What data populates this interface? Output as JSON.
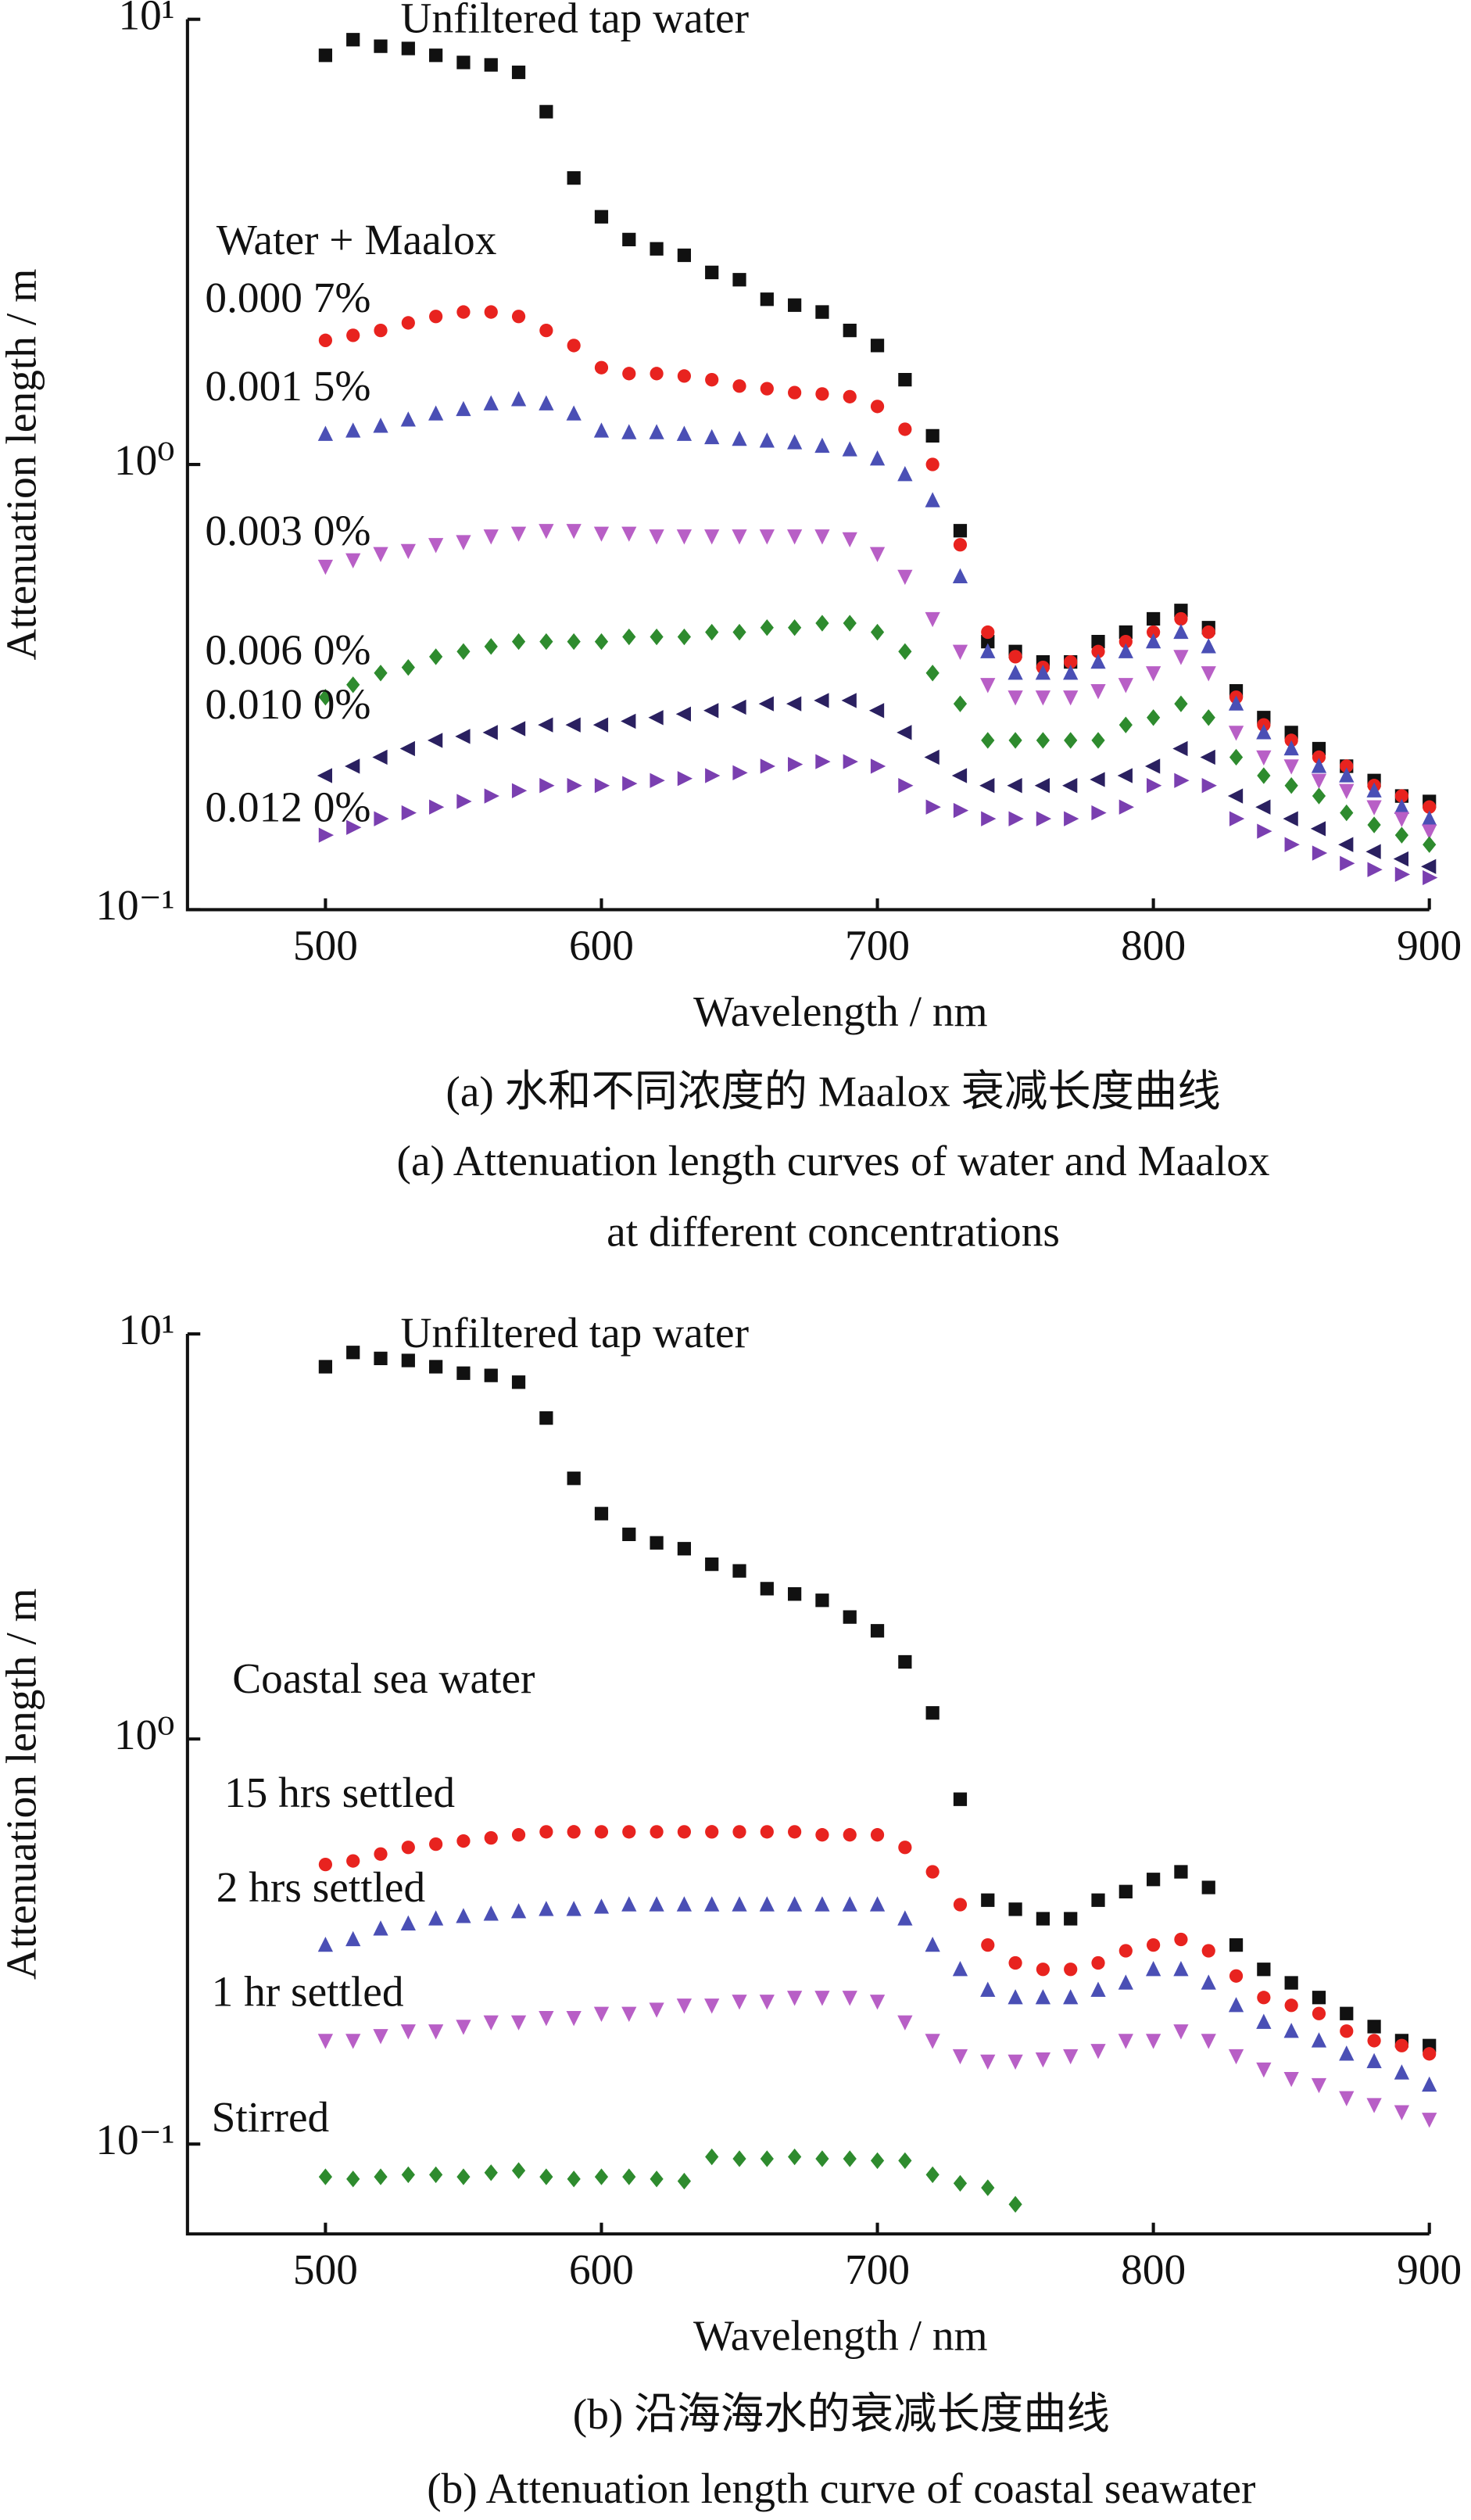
{
  "chart_data": [
    {
      "type": "scatter",
      "x": [
        500,
        510,
        520,
        530,
        540,
        550,
        560,
        570,
        580,
        590,
        600,
        610,
        620,
        630,
        640,
        650,
        660,
        670,
        680,
        690,
        700,
        710,
        720,
        730,
        740,
        750,
        760,
        770,
        780,
        790,
        800,
        810,
        820,
        830,
        840,
        850,
        860,
        870,
        880,
        890,
        900
      ],
      "xlabel": "Wavelength / nm",
      "ylabel": "Attenuation length / m",
      "xlim": [
        450,
        900
      ],
      "xticks": [
        500,
        600,
        700,
        800,
        900
      ],
      "ylim": [
        0.1,
        10
      ],
      "log_y": true,
      "yticks": [
        {
          "value": 10,
          "label": "10¹"
        },
        {
          "value": 1,
          "label": "10⁰"
        },
        {
          "value": 0.1,
          "label": "10⁻¹"
        }
      ],
      "annotations": [
        "Water + Maalox"
      ],
      "caption": [
        "(a) 水和不同浓度的 Maalox 衰减长度曲线",
        "(a) Attenuation length curves of water and Maalox",
        "at different concentrations"
      ],
      "series": [
        {
          "name": "Unfiltered tap water",
          "color": "#111111",
          "marker": "square",
          "values": [
            8.3,
            9,
            8.7,
            8.6,
            8.3,
            8,
            7.9,
            7.6,
            6.2,
            4.4,
            3.6,
            3.2,
            3.05,
            2.95,
            2.7,
            2.6,
            2.35,
            2.28,
            2.2,
            2.0,
            1.85,
            1.55,
            1.16,
            0.71,
            0.4,
            0.38,
            0.36,
            0.36,
            0.4,
            0.42,
            0.45,
            0.47,
            0.43,
            0.31,
            0.27,
            0.25,
            0.23,
            0.21,
            0.195,
            0.18,
            0.175
          ]
        },
        {
          "name": "0.000 7%",
          "color": "#e8231f",
          "marker": "circle",
          "values": [
            1.9,
            1.95,
            2.0,
            2.08,
            2.15,
            2.2,
            2.2,
            2.15,
            2.0,
            1.85,
            1.65,
            1.6,
            1.6,
            1.58,
            1.55,
            1.5,
            1.48,
            1.45,
            1.44,
            1.42,
            1.35,
            1.2,
            1.0,
            0.66,
            0.42,
            0.37,
            0.35,
            0.36,
            0.38,
            0.4,
            0.42,
            0.45,
            0.42,
            0.3,
            0.26,
            0.24,
            0.22,
            0.21,
            0.19,
            0.18,
            0.17
          ]
        },
        {
          "name": "0.001 5%",
          "color": "#4a4fb5",
          "marker": "triangle-up",
          "values": [
            1.17,
            1.19,
            1.22,
            1.26,
            1.3,
            1.33,
            1.37,
            1.4,
            1.37,
            1.3,
            1.19,
            1.18,
            1.18,
            1.17,
            1.15,
            1.14,
            1.13,
            1.12,
            1.1,
            1.08,
            1.03,
            0.95,
            0.83,
            0.56,
            0.38,
            0.34,
            0.34,
            0.34,
            0.36,
            0.38,
            0.4,
            0.42,
            0.39,
            0.29,
            0.25,
            0.23,
            0.21,
            0.2,
            0.185,
            0.17,
            0.16
          ]
        },
        {
          "name": "0.003 0%",
          "color": "#b85fc6",
          "marker": "triangle-down",
          "values": [
            0.59,
            0.61,
            0.63,
            0.64,
            0.66,
            0.67,
            0.69,
            0.7,
            0.71,
            0.71,
            0.7,
            0.7,
            0.69,
            0.69,
            0.69,
            0.69,
            0.69,
            0.69,
            0.69,
            0.68,
            0.63,
            0.56,
            0.45,
            0.38,
            0.32,
            0.3,
            0.3,
            0.3,
            0.31,
            0.32,
            0.34,
            0.37,
            0.34,
            0.25,
            0.22,
            0.21,
            0.195,
            0.185,
            0.17,
            0.16,
            0.15
          ]
        },
        {
          "name": "0.006 0%",
          "color": "#2e8b2e",
          "marker": "diamond",
          "values": [
            0.3,
            0.32,
            0.34,
            0.35,
            0.37,
            0.38,
            0.39,
            0.4,
            0.4,
            0.4,
            0.4,
            0.41,
            0.41,
            0.41,
            0.42,
            0.42,
            0.43,
            0.43,
            0.44,
            0.44,
            0.42,
            0.38,
            0.34,
            0.29,
            0.24,
            0.24,
            0.24,
            0.24,
            0.24,
            0.26,
            0.27,
            0.29,
            0.27,
            0.22,
            0.2,
            0.19,
            0.18,
            0.165,
            0.155,
            0.147,
            0.14
          ]
        },
        {
          "name": "0.010 0%",
          "color": "#2a2060",
          "marker": "triangle-left",
          "values": [
            0.2,
            0.21,
            0.22,
            0.23,
            0.24,
            0.245,
            0.25,
            0.255,
            0.26,
            0.26,
            0.26,
            0.265,
            0.27,
            0.275,
            0.28,
            0.285,
            0.29,
            0.29,
            0.295,
            0.295,
            0.28,
            0.25,
            0.22,
            0.2,
            0.19,
            0.19,
            0.19,
            0.19,
            0.196,
            0.2,
            0.21,
            0.23,
            0.22,
            0.18,
            0.17,
            0.16,
            0.152,
            0.14,
            0.135,
            0.13,
            0.125
          ]
        },
        {
          "name": "0.012 0%",
          "color": "#7a3fb0",
          "marker": "triangle-right",
          "values": [
            0.147,
            0.153,
            0.16,
            0.165,
            0.17,
            0.175,
            0.18,
            0.185,
            0.19,
            0.19,
            0.19,
            0.192,
            0.195,
            0.197,
            0.2,
            0.203,
            0.21,
            0.212,
            0.215,
            0.215,
            0.21,
            0.19,
            0.17,
            0.167,
            0.16,
            0.16,
            0.16,
            0.16,
            0.165,
            0.17,
            0.19,
            0.195,
            0.19,
            0.16,
            0.15,
            0.14,
            0.134,
            0.127,
            0.123,
            0.12,
            0.118
          ]
        }
      ]
    },
    {
      "type": "scatter",
      "x": [
        500,
        510,
        520,
        530,
        540,
        550,
        560,
        570,
        580,
        590,
        600,
        610,
        620,
        630,
        640,
        650,
        660,
        670,
        680,
        690,
        700,
        710,
        720,
        730,
        740,
        750,
        760,
        770,
        780,
        790,
        800,
        810,
        820,
        830,
        840,
        850,
        860,
        870,
        880,
        890,
        900
      ],
      "xlabel": "Wavelength / nm",
      "ylabel": "Attenuation length / m",
      "xlim": [
        450,
        900
      ],
      "xticks": [
        500,
        600,
        700,
        800,
        900
      ],
      "ylim": [
        0.06,
        10
      ],
      "log_y": true,
      "yticks": [
        {
          "value": 10,
          "label": "10¹"
        },
        {
          "value": 1,
          "label": "10⁰"
        },
        {
          "value": 0.1,
          "label": "10⁻¹"
        }
      ],
      "annotations": [
        "Coastal sea water"
      ],
      "caption": [
        "(b) 沿海海水的衰减长度曲线",
        "(b) Attenuation length curve of coastal seawater"
      ],
      "series": [
        {
          "name": "Unfiltered tap water",
          "color": "#111111",
          "marker": "square",
          "values": [
            8.3,
            9,
            8.7,
            8.6,
            8.3,
            8,
            7.9,
            7.6,
            6.2,
            4.4,
            3.6,
            3.2,
            3.05,
            2.95,
            2.7,
            2.6,
            2.35,
            2.28,
            2.2,
            2.0,
            1.85,
            1.55,
            1.16,
            0.71,
            0.4,
            0.38,
            0.36,
            0.36,
            0.4,
            0.42,
            0.45,
            0.47,
            0.43,
            0.31,
            0.27,
            0.25,
            0.23,
            0.21,
            0.195,
            0.18,
            0.175
          ]
        },
        {
          "name": "15 hrs settled",
          "color": "#e8231f",
          "marker": "circle",
          "values": [
            0.49,
            0.5,
            0.52,
            0.54,
            0.55,
            0.56,
            0.57,
            0.58,
            0.59,
            0.59,
            0.59,
            0.59,
            0.59,
            0.59,
            0.59,
            0.59,
            0.59,
            0.59,
            0.58,
            0.58,
            0.58,
            0.54,
            0.47,
            0.39,
            0.31,
            0.28,
            0.27,
            0.27,
            0.28,
            0.3,
            0.31,
            0.32,
            0.3,
            0.26,
            0.23,
            0.22,
            0.21,
            0.19,
            0.18,
            0.175,
            0.167
          ]
        },
        {
          "name": "2 hrs settled",
          "color": "#4a4fb5",
          "marker": "triangle-up",
          "values": [
            0.31,
            0.32,
            0.34,
            0.35,
            0.36,
            0.365,
            0.37,
            0.375,
            0.38,
            0.38,
            0.385,
            0.39,
            0.39,
            0.39,
            0.39,
            0.39,
            0.39,
            0.39,
            0.39,
            0.39,
            0.39,
            0.36,
            0.31,
            0.27,
            0.24,
            0.23,
            0.23,
            0.23,
            0.24,
            0.25,
            0.27,
            0.27,
            0.25,
            0.22,
            0.2,
            0.19,
            0.18,
            0.167,
            0.16,
            0.15,
            0.14
          ]
        },
        {
          "name": "1 hr settled",
          "color": "#b85fc6",
          "marker": "triangle-down",
          "values": [
            0.18,
            0.18,
            0.185,
            0.19,
            0.19,
            0.195,
            0.2,
            0.2,
            0.205,
            0.205,
            0.21,
            0.21,
            0.215,
            0.22,
            0.22,
            0.225,
            0.225,
            0.23,
            0.23,
            0.23,
            0.225,
            0.2,
            0.18,
            0.165,
            0.16,
            0.16,
            0.162,
            0.165,
            0.17,
            0.18,
            0.18,
            0.19,
            0.18,
            0.165,
            0.153,
            0.145,
            0.14,
            0.13,
            0.125,
            0.12,
            0.115
          ]
        },
        {
          "name": "Stirred",
          "color": "#2e8b2e",
          "marker": "diamond",
          "values": [
            0.083,
            0.082,
            0.083,
            0.084,
            0.084,
            0.083,
            0.085,
            0.086,
            0.083,
            0.082,
            0.083,
            0.083,
            0.082,
            0.081,
            0.093,
            0.092,
            0.092,
            0.093,
            0.092,
            0.092,
            0.091,
            0.091,
            0.084,
            0.08,
            0.078,
            0.071,
            null,
            null,
            null,
            null,
            null,
            null,
            null,
            null,
            null,
            null,
            null,
            null,
            null,
            null,
            null
          ]
        }
      ]
    }
  ]
}
